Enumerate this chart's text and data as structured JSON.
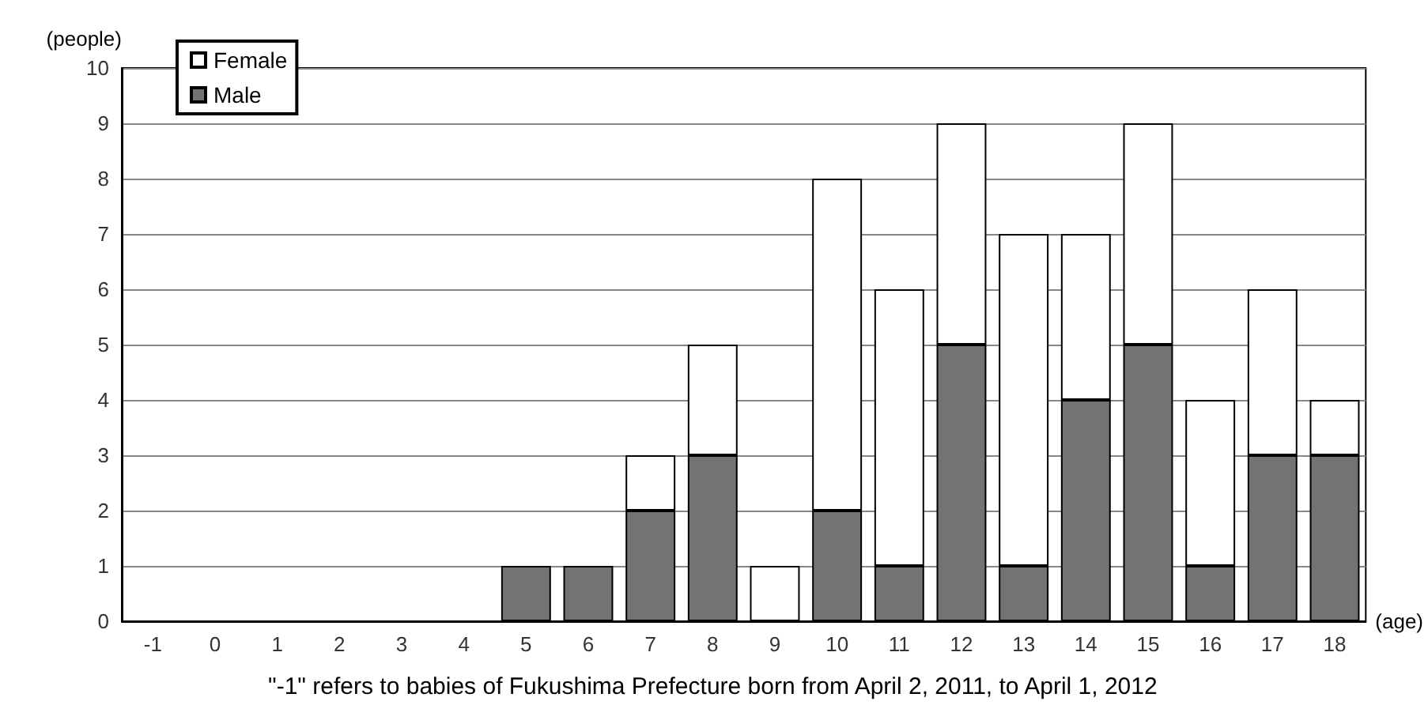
{
  "chart_data": {
    "type": "bar",
    "stacked": true,
    "xlabel": "(age)",
    "ylabel": "(people)",
    "categories": [
      "-1",
      "0",
      "1",
      "2",
      "3",
      "4",
      "5",
      "6",
      "7",
      "8",
      "9",
      "10",
      "11",
      "12",
      "13",
      "14",
      "15",
      "16",
      "17",
      "18"
    ],
    "series": [
      {
        "name": "Male",
        "color": "#737373",
        "values": [
          0,
          0,
          0,
          0,
          0,
          0,
          1,
          1,
          2,
          3,
          0,
          2,
          1,
          5,
          1,
          4,
          5,
          1,
          3,
          3
        ]
      },
      {
        "name": "Female",
        "color": "#ffffff",
        "values": [
          0,
          0,
          0,
          0,
          0,
          0,
          0,
          0,
          1,
          2,
          1,
          6,
          5,
          4,
          6,
          3,
          4,
          3,
          3,
          1
        ]
      }
    ],
    "ylim": [
      0,
      10
    ],
    "yticks": [
      0,
      1,
      2,
      3,
      4,
      5,
      6,
      7,
      8,
      9,
      10
    ],
    "grid": "y",
    "legend": "top left",
    "annotations": [
      "\"-1\" refers to babies of Fukushima Prefecture born from April 2, 2011, to April 1, 2012"
    ]
  }
}
